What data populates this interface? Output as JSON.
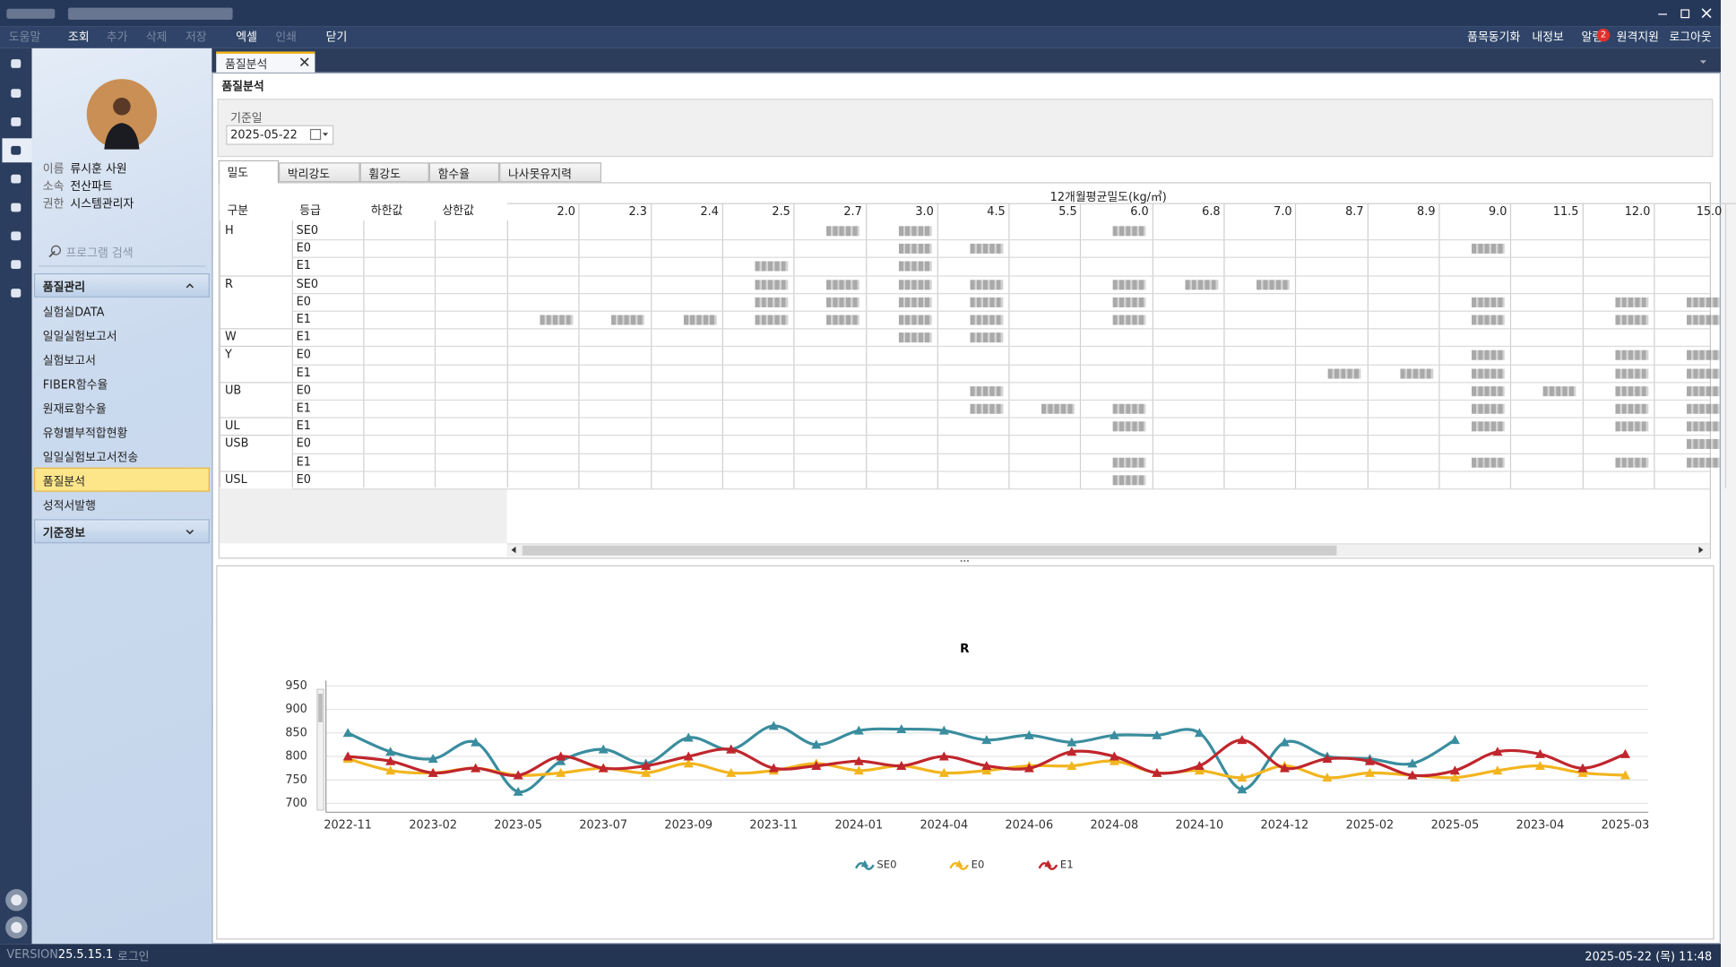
{
  "menu": {
    "left": [
      {
        "label": "도움말",
        "enabled": false
      },
      {
        "label": "조회",
        "enabled": true
      },
      {
        "label": "추가",
        "enabled": false
      },
      {
        "label": "삭제",
        "enabled": false
      },
      {
        "label": "저장",
        "enabled": false
      },
      {
        "label": "엑셀",
        "enabled": true
      },
      {
        "label": "인쇄",
        "enabled": false
      },
      {
        "label": "닫기",
        "enabled": true
      }
    ],
    "right": [
      "품목동기화",
      "내정보",
      "알림",
      "원격지원",
      "로그아웃"
    ],
    "alert_count": 2
  },
  "profile": {
    "fields": [
      {
        "label": "이름",
        "value": "류시훈 사원"
      },
      {
        "label": "소속",
        "value": "전산파트"
      },
      {
        "label": "권한",
        "value": "시스템관리자"
      }
    ]
  },
  "search_placeholder": "프로그램 검색",
  "nav": {
    "sections": [
      {
        "title": "품질관리",
        "expanded": true,
        "selected_index": 7,
        "items": [
          "실험실DATA",
          "일일실험보고서",
          "실험보고서",
          "FIBER함수율",
          "원재료함수율",
          "유형별부적합현황",
          "일일실험보고서전송",
          "품질분석",
          "성적서발행"
        ]
      },
      {
        "title": "기준정보",
        "expanded": false
      }
    ]
  },
  "document_tab": "품질분석",
  "page_title": "품질분석",
  "filter": {
    "label": "기준일",
    "date": "2025-05-22"
  },
  "sub_tabs": {
    "items": [
      "밀도",
      "박리강도",
      "휨강도",
      "함수율",
      "나사못유지력"
    ],
    "active": 0
  },
  "table": {
    "columns": [
      "구분",
      "등급",
      "하한값",
      "상한값"
    ],
    "density_title": "12개월평균밀도(kg/㎥)",
    "density_columns": [
      "2.0",
      "2.3",
      "2.4",
      "2.5",
      "2.7",
      "3.0",
      "4.5",
      "5.5",
      "6.0",
      "6.8",
      "7.0",
      "8.7",
      "8.9",
      "9.0",
      "11.5",
      "12.0",
      "15.0"
    ],
    "groups": [
      {
        "name": "H",
        "grades": [
          "SE0",
          "E0",
          "E1"
        ]
      },
      {
        "name": "R",
        "grades": [
          "SE0",
          "E0",
          "E1"
        ]
      },
      {
        "name": "W",
        "grades": [
          "E1"
        ]
      },
      {
        "name": "Y",
        "grades": [
          "E0",
          "E1"
        ]
      },
      {
        "name": "UB",
        "grades": [
          "E0",
          "E1"
        ]
      },
      {
        "name": "UL",
        "grades": [
          "E1"
        ]
      },
      {
        "name": "USB",
        "grades": [
          "E0",
          "E1"
        ]
      },
      {
        "name": "USL",
        "grades": [
          "E0"
        ]
      }
    ]
  },
  "chart_data": {
    "type": "line",
    "title": "R",
    "smooth": true,
    "grid": true,
    "legend": "bottom",
    "categories": [
      "2022-11",
      null,
      "2023-02",
      null,
      "2023-05",
      null,
      "2023-07",
      null,
      "2023-09",
      null,
      "2023-11",
      null,
      "2024-01",
      null,
      "2024-04",
      null,
      "2024-06",
      null,
      "2024-08",
      null,
      "2024-10",
      null,
      "2024-12",
      null,
      "2025-02",
      null,
      "2025-05",
      null,
      "2023-04",
      null,
      "2025-03"
    ],
    "ylim": [
      690,
      960
    ],
    "yticks": [
      700,
      750,
      800,
      850,
      900,
      950
    ],
    "series": [
      {
        "name": "SE0",
        "color": "#3a8d9e",
        "values": [
          850,
          810,
          795,
          830,
          725,
          790,
          815,
          785,
          840,
          815,
          865,
          825,
          855,
          858,
          855,
          835,
          845,
          830,
          845,
          845,
          850,
          730,
          830,
          800,
          795,
          785,
          835,
          null,
          null,
          null,
          null
        ]
      },
      {
        "name": "E0",
        "color": "#f2b51e",
        "values": [
          795,
          770,
          765,
          775,
          760,
          765,
          775,
          765,
          785,
          765,
          770,
          785,
          770,
          780,
          765,
          770,
          780,
          780,
          790,
          765,
          770,
          755,
          780,
          755,
          765,
          760,
          755,
          770,
          780,
          765,
          760
        ]
      },
      {
        "name": "E1",
        "color": "#c0262d",
        "values": [
          800,
          790,
          765,
          775,
          760,
          800,
          775,
          780,
          800,
          815,
          775,
          780,
          790,
          780,
          800,
          780,
          775,
          810,
          800,
          765,
          780,
          835,
          775,
          795,
          790,
          760,
          770,
          810,
          805,
          775,
          805
        ]
      }
    ]
  },
  "status": {
    "version_label": "VERSION",
    "version": "25.5.15.1",
    "login": "로그인",
    "datetime": "2025-05-22 (목) 11:48"
  }
}
